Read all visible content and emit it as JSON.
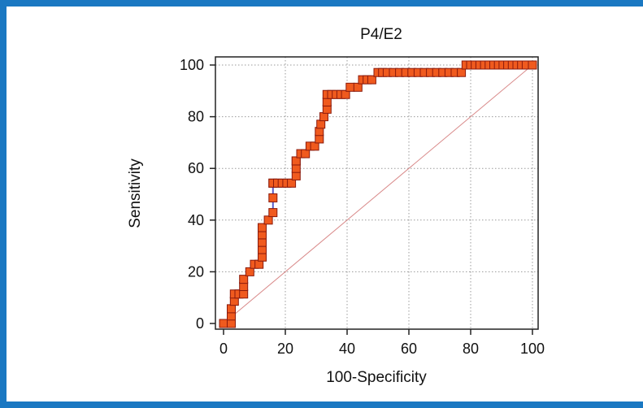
{
  "chart_data": {
    "type": "line",
    "title": "P4/E2",
    "xlabel": "100-Specificity",
    "ylabel": "Sensitivity",
    "xlim": [
      0,
      100
    ],
    "ylim": [
      0,
      100
    ],
    "x_ticks": [
      "0",
      "20",
      "40",
      "60",
      "80",
      "100"
    ],
    "y_ticks": [
      "0",
      "20",
      "40",
      "60",
      "80",
      "100"
    ],
    "grid": true,
    "series": [
      {
        "marker": "square",
        "x": [
          0,
          2.5,
          2.5,
          2.5,
          3.5,
          3.5,
          5,
          6.5,
          6.5,
          6.5,
          8.5,
          10,
          11.5,
          12.5,
          12.5,
          12.5,
          12.5,
          12.5,
          14.5,
          16,
          16,
          16,
          16,
          17.5,
          19,
          20.5,
          22,
          23.5,
          23.5,
          23.5,
          23.5,
          25,
          26.5,
          28,
          29.5,
          31,
          31,
          31.5,
          32.5,
          33.5,
          33.5,
          33.5,
          35,
          36.5,
          38,
          39.5,
          41,
          43.5,
          45,
          46.5,
          48,
          50,
          51.5,
          53,
          55,
          57,
          59,
          61,
          63,
          65,
          67,
          69,
          71,
          73,
          75,
          77,
          78.5,
          80,
          81.5,
          83,
          84.5,
          86,
          87.5,
          89,
          90.5,
          92,
          93.5,
          95,
          96.5,
          98,
          100
        ],
        "y": [
          0,
          0,
          2.9,
          5.7,
          8.6,
          11.4,
          11.4,
          11.4,
          14.3,
          17.1,
          20,
          22.9,
          22.9,
          25.7,
          28.6,
          31.4,
          34.3,
          37.1,
          40,
          42.9,
          48.6,
          54.3,
          54.3,
          54.3,
          54.3,
          54.3,
          54.3,
          57.1,
          60,
          62.9,
          62.9,
          65.7,
          65.7,
          68.6,
          68.6,
          71.4,
          74.3,
          77.1,
          80,
          82.9,
          85.7,
          88.6,
          88.6,
          88.6,
          88.6,
          88.6,
          91.4,
          91.4,
          94.3,
          94.3,
          94.3,
          97.1,
          97.1,
          97.1,
          97.1,
          97.1,
          97.1,
          97.1,
          97.1,
          97.1,
          97.1,
          97.1,
          97.1,
          97.1,
          97.1,
          97.1,
          100,
          100,
          100,
          100,
          100,
          100,
          100,
          100,
          100,
          100,
          100,
          100,
          100,
          100,
          100
        ]
      },
      {
        "style": "diagonal",
        "x": [
          0,
          100
        ],
        "y": [
          0,
          100
        ]
      }
    ]
  },
  "colors": {
    "frame": "#1a78c2",
    "marker_fill": "#f05a1e",
    "marker_stroke": "#8b1a0c",
    "curve": "#5a5fc9",
    "diagonal": "#d98a8a",
    "grid": "#9a9a9a"
  }
}
